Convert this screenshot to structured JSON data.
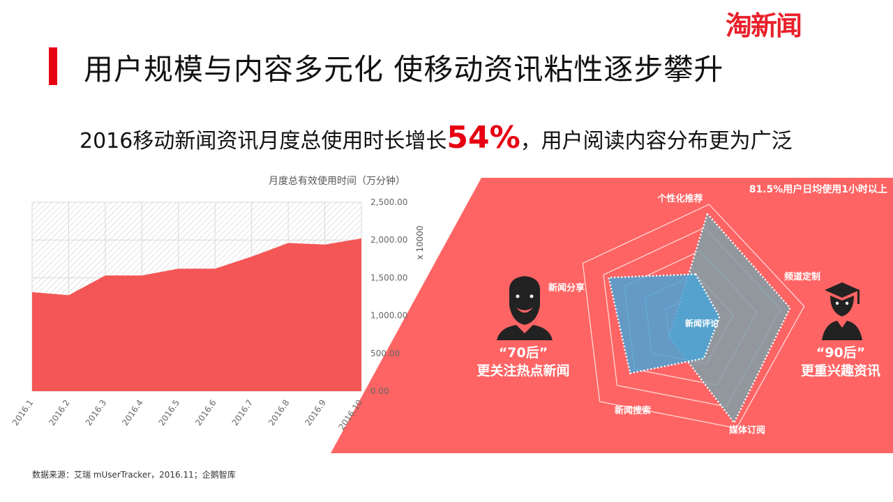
{
  "header": {
    "logo_text": "淘新闻",
    "title": "用户规模与内容多元化  使移动资讯粘性逐步攀升"
  },
  "subtitle": {
    "prefix": "2016移动新闻资讯月度总使用时长增长",
    "highlight": "54%",
    "suffix": "，用户阅读内容分布更为广泛"
  },
  "chart_data": [
    {
      "type": "area",
      "title": "月度总有效使用时间（万分钟）",
      "y_unit": "x 10000",
      "categories": [
        "2016.1",
        "2016.2",
        "2016.3",
        "2016.4",
        "2016.5",
        "2016.6",
        "2016.7",
        "2016.8",
        "2016.9",
        "2016.10"
      ],
      "values": [
        1310,
        1270,
        1530,
        1530,
        1620,
        1620,
        1780,
        1960,
        1940,
        2020
      ],
      "y_ticks": [
        "2,500.00",
        "2,000.00",
        "1,500.00",
        "1,000.00",
        "500.00",
        "0.00"
      ],
      "ylim": [
        0,
        2500
      ],
      "fill_color": "#f45656",
      "legend": "none"
    },
    {
      "type": "radar",
      "axes": [
        "个性化推荐",
        "频道定制",
        "媒体订阅",
        "新闻搜索",
        "新闻分享"
      ],
      "center_label": "新闻评论",
      "series": [
        {
          "values": [
            0.92,
            0.88,
            0.95,
            0.2,
            0.1
          ],
          "color": "#7fa0a8"
        },
        {
          "values": [
            0.4,
            0.28,
            0.35,
            0.65,
            0.75
          ],
          "color": "#4aa3d6"
        }
      ]
    }
  ],
  "panel": {
    "stat_text": "81.5%用户日均使用1小时以上",
    "left_person": {
      "line1": "“70后”",
      "line2": "更关注热点新闻"
    },
    "right_person": {
      "line1": "“90后”",
      "line2": "更重兴趣资讯"
    },
    "bg_color": "#ff6464"
  },
  "footer": {
    "source": "数据来源：艾瑞 mUserTracker，2016.11；企鹅智库"
  }
}
